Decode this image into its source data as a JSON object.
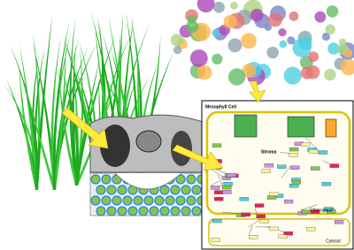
{
  "panel": {
    "title": "Mesophyll Cell",
    "labels": [
      "Stroma",
      "Chloroplast",
      "Cytosol"
    ]
  }
}
